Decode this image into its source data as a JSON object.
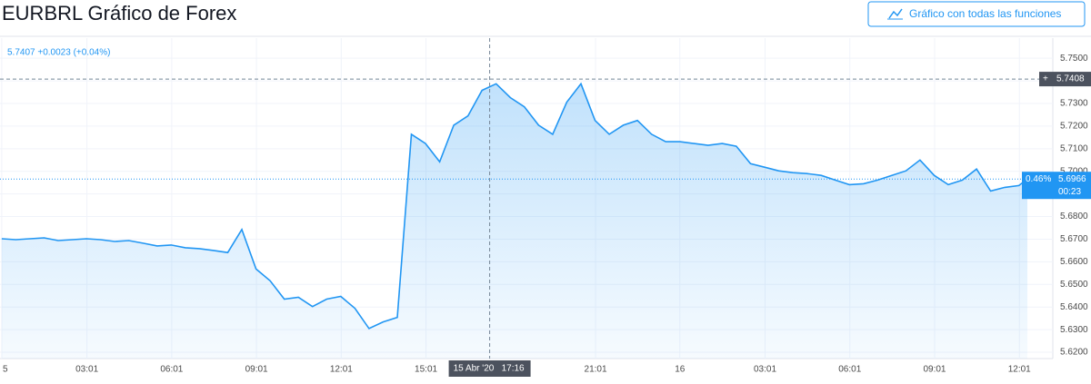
{
  "chart_data": {
    "type": "area",
    "title": "EURBRL Gráfico de Forex",
    "button": "Gráfico con todas las funciones",
    "legend_text": "5.7407 +0.0023 (+0.04%)",
    "color": "#2196f3",
    "grid": true,
    "x": [
      0,
      0.5,
      1,
      1.5,
      2,
      2.5,
      3,
      3.5,
      4,
      4.5,
      5,
      5.5,
      6,
      6.5,
      7,
      7.5,
      8,
      8.5,
      9,
      9.5,
      10,
      10.5,
      11,
      11.5,
      12,
      12.5,
      13,
      13.5,
      14,
      14.5,
      15,
      15.5,
      16,
      16.5,
      17,
      17.5,
      18,
      18.5,
      19,
      19.5,
      20,
      20.5,
      21,
      21.5,
      22,
      22.5,
      23,
      23.5,
      24,
      24.5,
      25,
      25.5,
      26,
      26.5,
      27,
      27.5,
      28,
      28.5,
      29,
      29.5,
      30,
      30.5,
      31,
      31.5,
      32,
      32.5,
      33,
      33.5,
      34,
      34.5,
      35,
      35.5,
      36,
      36.3
    ],
    "values": [
      5.6702,
      5.6698,
      5.6702,
      5.6706,
      5.6694,
      5.6698,
      5.6702,
      5.6698,
      5.669,
      5.6694,
      5.6682,
      5.667,
      5.6674,
      5.6662,
      5.6658,
      5.665,
      5.6641,
      5.6743,
      5.6568,
      5.6516,
      5.6435,
      5.6443,
      5.6402,
      5.6435,
      5.6447,
      5.6394,
      5.6305,
      5.6334,
      5.6354,
      5.7164,
      5.7123,
      5.7042,
      5.7204,
      5.7245,
      5.7358,
      5.7387,
      5.7326,
      5.7285,
      5.7204,
      5.7164,
      5.7306,
      5.7387,
      5.7225,
      5.7164,
      5.7204,
      5.7225,
      5.7164,
      5.7131,
      5.7131,
      5.7123,
      5.7115,
      5.7123,
      5.7111,
      5.7034,
      5.7018,
      5.7002,
      5.6994,
      5.699,
      5.6982,
      5.6961,
      5.6941,
      5.6945,
      5.6961,
      5.6982,
      5.7002,
      5.705,
      5.6982,
      5.6941,
      5.6961,
      5.701,
      5.6913,
      5.6929,
      5.6937,
      5.6966
    ],
    "xlim": [
      -0.06,
      37.2
    ],
    "xticks": [
      {
        "value": 0,
        "label": "5"
      },
      {
        "value": 3.017,
        "label": "03:01"
      },
      {
        "value": 6.017,
        "label": "06:01"
      },
      {
        "value": 9.017,
        "label": "09:01"
      },
      {
        "value": 12.017,
        "label": "12:01"
      },
      {
        "value": 15.017,
        "label": "15:01"
      },
      {
        "value": 21.017,
        "label": "21:01"
      },
      {
        "value": 24,
        "label": "16"
      },
      {
        "value": 27.017,
        "label": "03:01"
      },
      {
        "value": 30.017,
        "label": "06:01"
      },
      {
        "value": 33.017,
        "label": "09:01"
      },
      {
        "value": 36.017,
        "label": "12:01"
      }
    ],
    "ylim": [
      5.6172,
      5.7589
    ],
    "yticks": [
      {
        "value": 5.62,
        "label": "5.6200"
      },
      {
        "value": 5.63,
        "label": "5.6300"
      },
      {
        "value": 5.64,
        "label": "5.6400"
      },
      {
        "value": 5.65,
        "label": "5.6500"
      },
      {
        "value": 5.66,
        "label": "5.6600"
      },
      {
        "value": 5.67,
        "label": "5.6700"
      },
      {
        "value": 5.68,
        "label": "5.6800"
      },
      {
        "value": 5.69,
        "label": "5.6900"
      },
      {
        "value": 5.7,
        "label": "5.7000"
      },
      {
        "value": 5.71,
        "label": "5.7100"
      },
      {
        "value": 5.72,
        "label": "5.7200"
      },
      {
        "value": 5.73,
        "label": "5.7300"
      },
      {
        "value": 5.74,
        "label": "5.7400"
      },
      {
        "value": 5.75,
        "label": "5.7500"
      }
    ],
    "crosshair_x": 17.27,
    "crosshair_date": "15 Abr '20",
    "crosshair_time": "17:16",
    "crosshair_price": 5.7408,
    "last_price": 5.6966,
    "last_change": "0.46%",
    "countdown": "00:23"
  }
}
